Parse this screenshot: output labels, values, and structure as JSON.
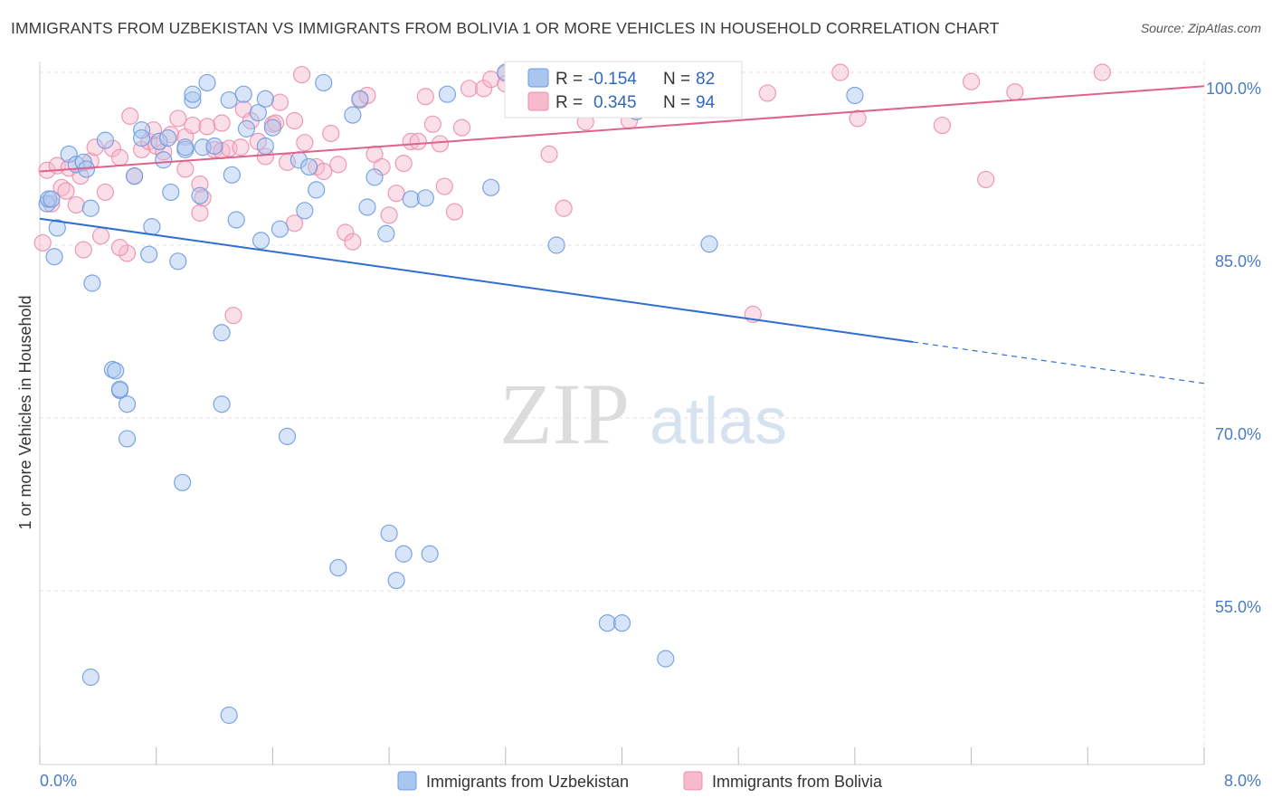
{
  "title": "IMMIGRANTS FROM UZBEKISTAN VS IMMIGRANTS FROM BOLIVIA 1 OR MORE VEHICLES IN HOUSEHOLD CORRELATION CHART",
  "source": "Source: ZipAtlas.com",
  "watermark": {
    "zip": "ZIP",
    "atlas": "atlas"
  },
  "legend": {
    "r_label": "R =",
    "n_label": "N =",
    "items": [
      {
        "r": "-0.154",
        "n": "82",
        "fill": "#a9c6ef",
        "stroke": "#6f9be0"
      },
      {
        "r": "0.345",
        "n": "94",
        "fill": "#f7b9cc",
        "stroke": "#ec8fac"
      }
    ]
  },
  "chart_data": {
    "type": "scatter",
    "xlabel": "",
    "ylabel": "1 or more Vehicles in Household",
    "xlim": [
      0.0,
      8.0
    ],
    "ylim": [
      40.0,
      101.0
    ],
    "x_tick_labels": [
      "0.0%",
      "8.0%"
    ],
    "y_ticks": [
      100.0,
      85.0,
      70.0,
      55.0
    ],
    "y_tick_labels": [
      "100.0%",
      "85.0%",
      "70.0%",
      "55.0%"
    ],
    "grid": true,
    "series": [
      {
        "name": "Immigrants from Uzbekistan",
        "color": "#6f9be0",
        "fill": "#a9c6ef",
        "trend": {
          "x0": 0.0,
          "y0": 87.3,
          "x1": 6.0,
          "y1": 76.6,
          "dashed_to_x": 8.0,
          "dashed_to_y": 73.0
        },
        "points": [
          [
            0.05,
            88.6
          ],
          [
            0.06,
            89.0
          ],
          [
            0.1,
            84.0
          ],
          [
            0.12,
            86.5
          ],
          [
            0.2,
            92.9
          ],
          [
            0.25,
            92.0
          ],
          [
            0.3,
            92.2
          ],
          [
            0.32,
            91.6
          ],
          [
            0.35,
            88.2
          ],
          [
            0.36,
            81.7
          ],
          [
            0.45,
            94.1
          ],
          [
            0.5,
            74.2
          ],
          [
            0.55,
            72.4
          ],
          [
            0.52,
            74.1
          ],
          [
            0.55,
            72.5
          ],
          [
            0.6,
            71.2
          ],
          [
            0.6,
            68.2
          ],
          [
            0.65,
            91.0
          ],
          [
            0.7,
            95.0
          ],
          [
            0.7,
            94.3
          ],
          [
            0.75,
            84.2
          ],
          [
            0.77,
            86.6
          ],
          [
            0.82,
            94.0
          ],
          [
            0.85,
            92.4
          ],
          [
            0.88,
            94.3
          ],
          [
            0.9,
            89.6
          ],
          [
            0.95,
            83.6
          ],
          [
            0.98,
            64.4
          ],
          [
            1.0,
            93.3
          ],
          [
            1.05,
            97.6
          ],
          [
            1.05,
            98.1
          ],
          [
            1.1,
            89.3
          ],
          [
            1.12,
            93.5
          ],
          [
            1.15,
            99.1
          ],
          [
            1.2,
            93.6
          ],
          [
            1.25,
            71.2
          ],
          [
            1.25,
            77.4
          ],
          [
            1.3,
            97.6
          ],
          [
            1.32,
            91.1
          ],
          [
            1.35,
            87.2
          ],
          [
            1.4,
            98.1
          ],
          [
            1.42,
            95.1
          ],
          [
            1.5,
            96.5
          ],
          [
            1.52,
            85.4
          ],
          [
            1.55,
            93.6
          ],
          [
            1.6,
            95.2
          ],
          [
            1.65,
            86.4
          ],
          [
            1.7,
            68.4
          ],
          [
            1.78,
            92.4
          ],
          [
            1.82,
            88.0
          ],
          [
            1.85,
            91.8
          ],
          [
            1.9,
            89.8
          ],
          [
            1.95,
            99.1
          ],
          [
            2.05,
            57.0
          ],
          [
            2.15,
            96.3
          ],
          [
            2.2,
            97.7
          ],
          [
            2.25,
            88.3
          ],
          [
            2.3,
            90.9
          ],
          [
            2.38,
            86.0
          ],
          [
            2.4,
            60.0
          ],
          [
            2.45,
            55.9
          ],
          [
            2.5,
            58.2
          ],
          [
            2.55,
            89.0
          ],
          [
            2.65,
            89.1
          ],
          [
            2.68,
            58.2
          ],
          [
            2.8,
            98.1
          ],
          [
            3.1,
            90.0
          ],
          [
            3.2,
            100.0
          ],
          [
            3.35,
            100.0
          ],
          [
            3.55,
            85.0
          ],
          [
            3.8,
            100.0
          ],
          [
            3.9,
            52.2
          ],
          [
            4.0,
            52.2
          ],
          [
            4.1,
            96.6
          ],
          [
            4.3,
            49.1
          ],
          [
            4.6,
            85.1
          ],
          [
            5.6,
            98.0
          ],
          [
            0.35,
            47.5
          ],
          [
            1.3,
            44.2
          ],
          [
            0.08,
            89.0
          ],
          [
            1.55,
            97.7
          ],
          [
            1.0,
            93.5
          ]
        ]
      },
      {
        "name": "Immigrants from Bolivia",
        "color": "#ec8fac",
        "fill": "#f7b9cc",
        "trend": {
          "x0": 0.0,
          "y0": 91.4,
          "x1": 8.0,
          "y1": 98.8
        },
        "points": [
          [
            0.02,
            85.2
          ],
          [
            0.05,
            91.5
          ],
          [
            0.08,
            88.6
          ],
          [
            0.12,
            91.9
          ],
          [
            0.15,
            90.0
          ],
          [
            0.18,
            89.7
          ],
          [
            0.2,
            91.7
          ],
          [
            0.25,
            88.5
          ],
          [
            0.28,
            91.0
          ],
          [
            0.3,
            84.6
          ],
          [
            0.35,
            92.3
          ],
          [
            0.38,
            93.5
          ],
          [
            0.42,
            85.8
          ],
          [
            0.45,
            89.6
          ],
          [
            0.5,
            93.4
          ],
          [
            0.55,
            92.6
          ],
          [
            0.6,
            84.3
          ],
          [
            0.62,
            96.2
          ],
          [
            0.65,
            91.0
          ],
          [
            0.7,
            93.3
          ],
          [
            0.75,
            94.0
          ],
          [
            0.78,
            95.0
          ],
          [
            0.8,
            93.6
          ],
          [
            0.85,
            93.1
          ],
          [
            0.9,
            94.6
          ],
          [
            0.95,
            96.0
          ],
          [
            1.0,
            94.4
          ],
          [
            1.0,
            91.6
          ],
          [
            1.05,
            95.4
          ],
          [
            1.1,
            90.3
          ],
          [
            1.1,
            87.8
          ],
          [
            1.12,
            89.1
          ],
          [
            1.15,
            95.3
          ],
          [
            1.2,
            93.3
          ],
          [
            1.25,
            95.6
          ],
          [
            1.25,
            93.2
          ],
          [
            1.3,
            93.4
          ],
          [
            1.33,
            78.9
          ],
          [
            1.38,
            93.5
          ],
          [
            1.4,
            96.8
          ],
          [
            1.45,
            95.8
          ],
          [
            1.5,
            94.0
          ],
          [
            1.55,
            92.7
          ],
          [
            1.6,
            95.5
          ],
          [
            1.62,
            95.6
          ],
          [
            1.65,
            97.4
          ],
          [
            1.7,
            92.2
          ],
          [
            1.75,
            95.8
          ],
          [
            1.8,
            99.8
          ],
          [
            1.82,
            93.9
          ],
          [
            1.9,
            91.8
          ],
          [
            1.95,
            91.4
          ],
          [
            2.0,
            94.7
          ],
          [
            2.05,
            92.0
          ],
          [
            2.1,
            86.1
          ],
          [
            2.15,
            85.3
          ],
          [
            2.2,
            97.6
          ],
          [
            2.25,
            98.0
          ],
          [
            2.3,
            92.9
          ],
          [
            2.35,
            91.8
          ],
          [
            2.4,
            87.6
          ],
          [
            2.45,
            89.5
          ],
          [
            2.5,
            92.1
          ],
          [
            2.55,
            94.0
          ],
          [
            2.6,
            94.0
          ],
          [
            2.65,
            97.9
          ],
          [
            2.7,
            95.5
          ],
          [
            2.75,
            93.8
          ],
          [
            2.78,
            90.1
          ],
          [
            2.85,
            87.9
          ],
          [
            2.9,
            95.2
          ],
          [
            2.95,
            98.6
          ],
          [
            3.05,
            98.6
          ],
          [
            3.1,
            99.4
          ],
          [
            3.2,
            99.9
          ],
          [
            3.2,
            99.0
          ],
          [
            3.5,
            92.9
          ],
          [
            3.6,
            88.2
          ],
          [
            3.7,
            99.4
          ],
          [
            3.75,
            95.7
          ],
          [
            3.9,
            98.1
          ],
          [
            4.05,
            95.8
          ],
          [
            4.3,
            99.5
          ],
          [
            4.9,
            79.0
          ],
          [
            5.0,
            98.2
          ],
          [
            5.5,
            100.0
          ],
          [
            5.62,
            96.0
          ],
          [
            6.2,
            95.4
          ],
          [
            6.4,
            99.2
          ],
          [
            6.5,
            90.7
          ],
          [
            6.7,
            98.3
          ],
          [
            7.3,
            100.0
          ],
          [
            0.55,
            84.8
          ],
          [
            1.75,
            86.9
          ]
        ]
      }
    ]
  },
  "bottom_legend": [
    "Immigrants from Uzbekistan",
    "Immigrants from Bolivia"
  ]
}
